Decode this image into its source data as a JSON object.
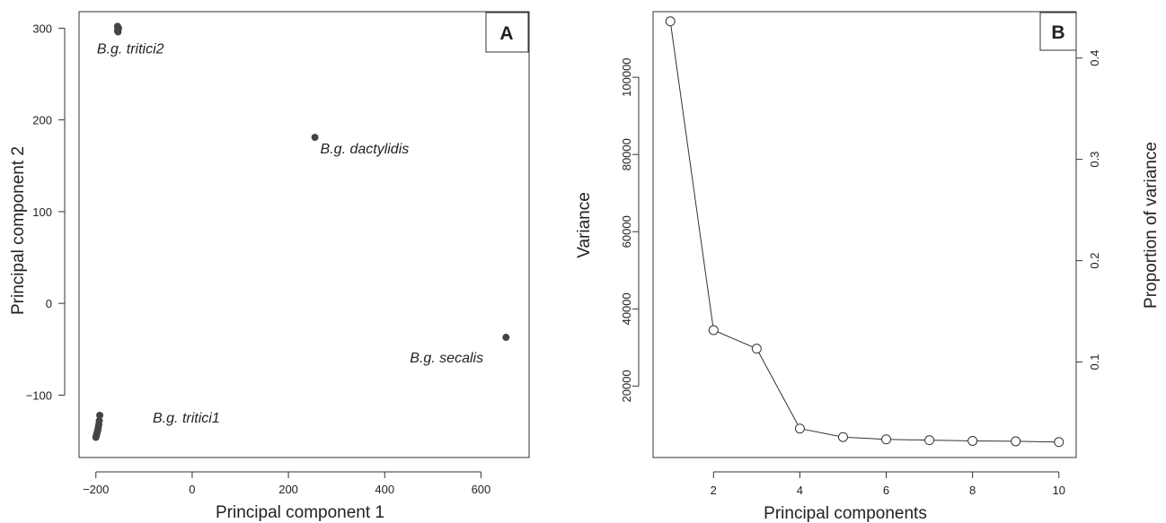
{
  "chart_data": [
    {
      "type": "scatter",
      "panel_label": "A",
      "xlabel": "Principal component 1",
      "ylabel": "Principal component 2",
      "xlim": [
        -235,
        700
      ],
      "ylim": [
        -168,
        318
      ],
      "xticks": [
        -200,
        0,
        200,
        400,
        600
      ],
      "yticks": [
        -100,
        0,
        100,
        200,
        300
      ],
      "marker_color": "#444444",
      "groups": [
        {
          "name": "B.g. tritici2",
          "label": "B.g. tritici2",
          "points": [
            [
              -155,
              302
            ],
            [
              -154,
              299
            ],
            [
              -155,
              297
            ],
            [
              -153,
              300
            ],
            [
              -154,
              296
            ]
          ]
        },
        {
          "name": "B.g. dactylidis",
          "label": "B.g. dactylidis",
          "points": [
            [
              255,
              181
            ]
          ]
        },
        {
          "name": "B.g. secalis",
          "label": "B.g. secalis",
          "points": [
            [
              652,
              -37
            ]
          ]
        },
        {
          "name": "B.g. tritici1",
          "label": "B.g. tritici1",
          "points": [
            [
              -192,
              -122
            ],
            [
              -193,
              -128
            ],
            [
              -194,
              -132
            ],
            [
              -195,
              -135
            ],
            [
              -196,
              -138
            ],
            [
              -197,
              -140
            ],
            [
              -198,
              -142
            ],
            [
              -199,
              -144
            ],
            [
              -200,
              -146
            ]
          ]
        }
      ]
    },
    {
      "type": "line",
      "panel_label": "B",
      "xlabel": "Principal components",
      "ylabel": "Variance",
      "ylabel_right": "Proportion of variance",
      "xlim": [
        0.6,
        10.4
      ],
      "ylim": [
        1500,
        117000
      ],
      "xticks": [
        2,
        4,
        6,
        8,
        10
      ],
      "yticks": [
        20000,
        40000,
        60000,
        80000,
        100000
      ],
      "yticks_right": [
        0.1,
        0.2,
        0.3,
        0.4
      ],
      "right_axis_scale": 3.81e-06,
      "series": [
        {
          "x": [
            1,
            2,
            3,
            4,
            5,
            6,
            7,
            8,
            9,
            10
          ],
          "values": [
            114500,
            34500,
            29700,
            9000,
            6800,
            6200,
            6000,
            5800,
            5700,
            5500
          ]
        }
      ]
    }
  ]
}
